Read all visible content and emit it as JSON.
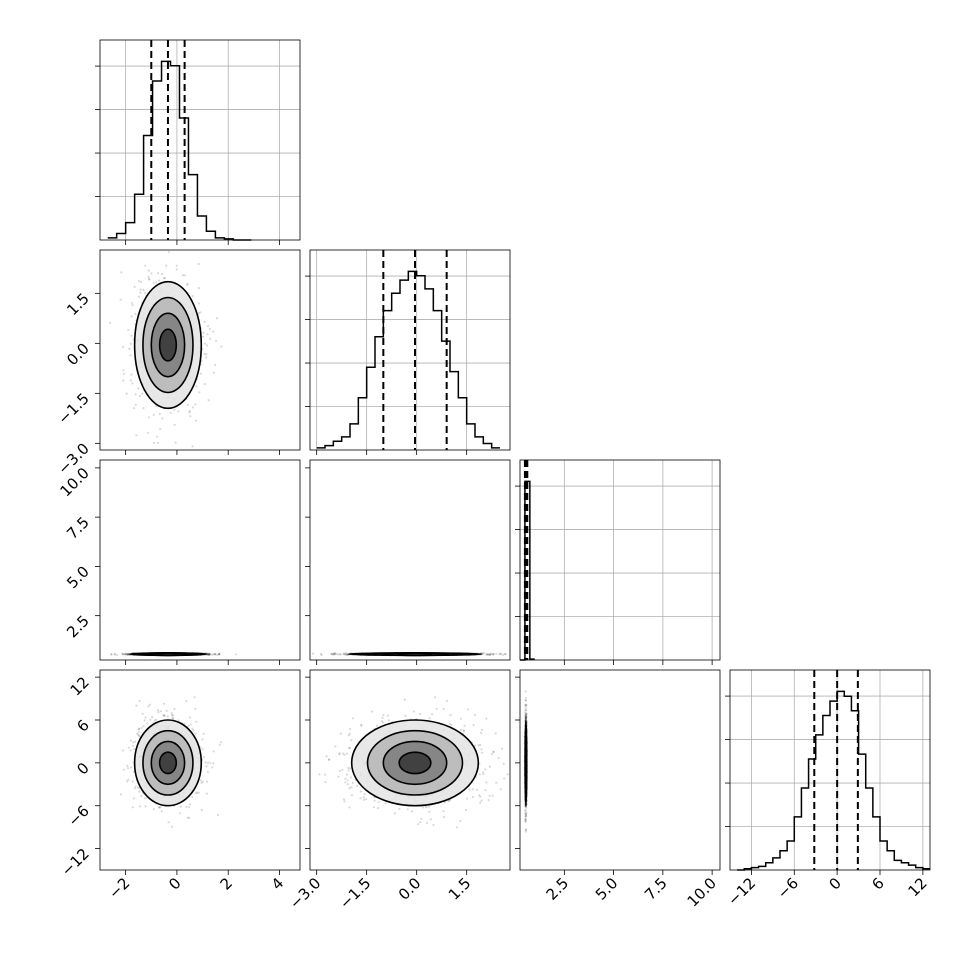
{
  "chart_data": {
    "type": "corner",
    "title": "",
    "parameters": [
      {
        "name": "",
        "range": [
          -3.0,
          4.8
        ],
        "ticks": [
          -2,
          0,
          2,
          4
        ],
        "tick_labels": [
          "−2",
          "0",
          "2",
          "4"
        ],
        "quantiles": [
          -1.0,
          -0.35,
          0.3
        ],
        "hist_bins": [
          -2.7,
          -2.35,
          -2.0,
          -1.65,
          -1.3,
          -0.95,
          -0.6,
          -0.25,
          0.1,
          0.45,
          0.8,
          1.15,
          1.5,
          1.85,
          2.2,
          2.55,
          2.9
        ],
        "hist_counts": [
          1,
          3,
          8,
          21,
          48,
          73,
          82,
          80,
          56,
          30,
          11,
          4,
          1,
          0.5,
          0,
          0
        ]
      },
      {
        "name": "",
        "range": [
          -3.2,
          2.8
        ],
        "ticks": [
          -3.0,
          -1.5,
          0.0,
          1.5
        ],
        "tick_labels": [
          "−3.0",
          "−1.5",
          "0.0",
          "1.5"
        ],
        "quantiles": [
          -1.0,
          -0.05,
          0.9
        ],
        "hist_bins": [
          -3.0,
          -2.75,
          -2.5,
          -2.25,
          -2.0,
          -1.75,
          -1.5,
          -1.25,
          -1.0,
          -0.75,
          -0.5,
          -0.25,
          0.0,
          0.25,
          0.5,
          0.75,
          1.0,
          1.25,
          1.5,
          1.75,
          2.0,
          2.25,
          2.5
        ],
        "hist_counts": [
          1,
          2,
          4,
          6,
          12,
          24,
          38,
          52,
          64,
          72,
          78,
          82,
          80,
          74,
          64,
          50,
          36,
          24,
          12,
          6,
          3,
          1
        ]
      },
      {
        "name": "",
        "range": [
          0.25,
          10.4
        ],
        "ticks": [
          2.5,
          5.0,
          7.5,
          10.0
        ],
        "tick_labels": [
          "2.5",
          "5.0",
          "7.5",
          "10.0"
        ],
        "quantiles": [
          0.5,
          0.55,
          0.62
        ],
        "hist_bins": [
          0.25,
          0.5,
          0.75,
          1.0
        ],
        "hist_counts": [
          0,
          99,
          0.5
        ]
      },
      {
        "name": "",
        "range": [
          -15,
          13
        ],
        "ticks": [
          -12,
          -6,
          0,
          6,
          12
        ],
        "tick_labels": [
          "−12",
          "−6",
          "0",
          "6",
          "12"
        ],
        "quantiles": [
          -3.2,
          0,
          2.9
        ],
        "hist_bins": [
          -14,
          -13,
          -12,
          -11,
          -10,
          -9,
          -8,
          -7,
          -6,
          -5,
          -4,
          -3,
          -2,
          -1,
          0,
          1,
          2,
          3,
          4,
          5,
          6,
          7,
          8,
          9,
          10,
          11,
          12,
          13
        ],
        "hist_counts": [
          0,
          0.5,
          1,
          1.5,
          3,
          5,
          8,
          12,
          22,
          34,
          46,
          56,
          64,
          70,
          74,
          72,
          66,
          48,
          34,
          22,
          12,
          8,
          4,
          3,
          2,
          1,
          0.5
        ]
      }
    ],
    "rows": [
      {
        "ylabels": [
          "1.5",
          "0.0",
          "−1.5",
          "−3.0"
        ],
        "yticks": [
          1.5,
          0.0,
          -1.5,
          -3.0
        ]
      },
      {
        "ylabels": [
          "10.0",
          "7.5",
          "5.0",
          "2.5"
        ],
        "yticks": [
          10.0,
          7.5,
          5.0,
          2.5
        ]
      },
      {
        "ylabels": [
          "12",
          "6",
          "0",
          "−6",
          "−12"
        ],
        "yticks": [
          12,
          6,
          0,
          -6,
          -12
        ]
      }
    ],
    "pairs": [
      {
        "x": 0,
        "y": 1,
        "center": [
          -0.35,
          -0.05
        ],
        "sigma": [
          0.65,
          0.95
        ]
      },
      {
        "x": 0,
        "y": 2,
        "center": [
          -0.35,
          0.55
        ],
        "sigma": [
          0.75,
          0.02
        ]
      },
      {
        "x": 1,
        "y": 2,
        "center": [
          -0.05,
          0.55
        ],
        "sigma": [
          1.0,
          0.02
        ]
      },
      {
        "x": 0,
        "y": 3,
        "center": [
          -0.35,
          0.0
        ],
        "sigma": [
          0.65,
          3.0
        ]
      },
      {
        "x": 1,
        "y": 3,
        "center": [
          -0.05,
          0.0
        ],
        "sigma": [
          0.95,
          3.0
        ]
      },
      {
        "x": 2,
        "y": 3,
        "center": [
          0.55,
          0.0
        ],
        "sigma": [
          0.02,
          3.0
        ]
      }
    ],
    "contour_levels_sigma": [
      0.5,
      1.0,
      1.5,
      2.0
    ],
    "grid": true,
    "legend": "none"
  }
}
